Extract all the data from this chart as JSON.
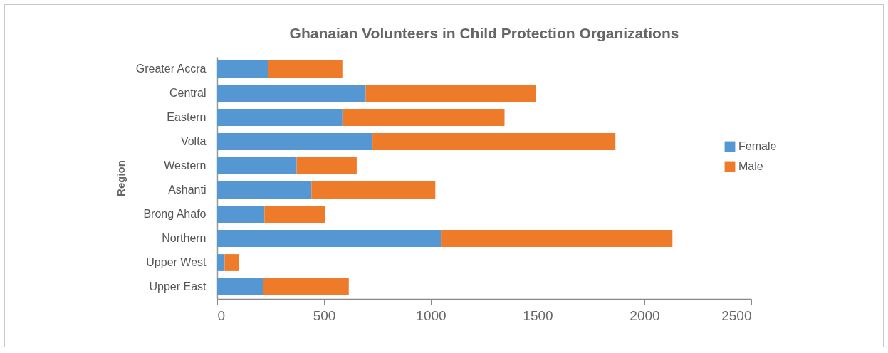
{
  "chart_data": {
    "type": "bar",
    "orientation": "horizontal",
    "stacked": true,
    "title": "Ghanaian Volunteers in Child Protection Organizations",
    "ylabel": "Region",
    "categories": [
      "Greater Accra",
      "Central",
      "Eastern",
      "Volta",
      "Western",
      "Ashanti",
      "Brong Ahafo",
      "Northern",
      "Upper West",
      "Upper East"
    ],
    "series": [
      {
        "name": "Female",
        "color": "#5597d2",
        "values": [
          238,
          695,
          586,
          727,
          372,
          441,
          221,
          1047,
          35,
          215
        ]
      },
      {
        "name": "Male",
        "color": "#ee7b2a",
        "values": [
          348,
          797,
          759,
          1137,
          281,
          580,
          285,
          1084,
          66,
          401
        ]
      }
    ],
    "xlim": [
      0,
      2500
    ],
    "xticks": [
      0,
      500,
      1000,
      1500,
      2000,
      2500
    ],
    "grid": false,
    "legend": "right"
  }
}
